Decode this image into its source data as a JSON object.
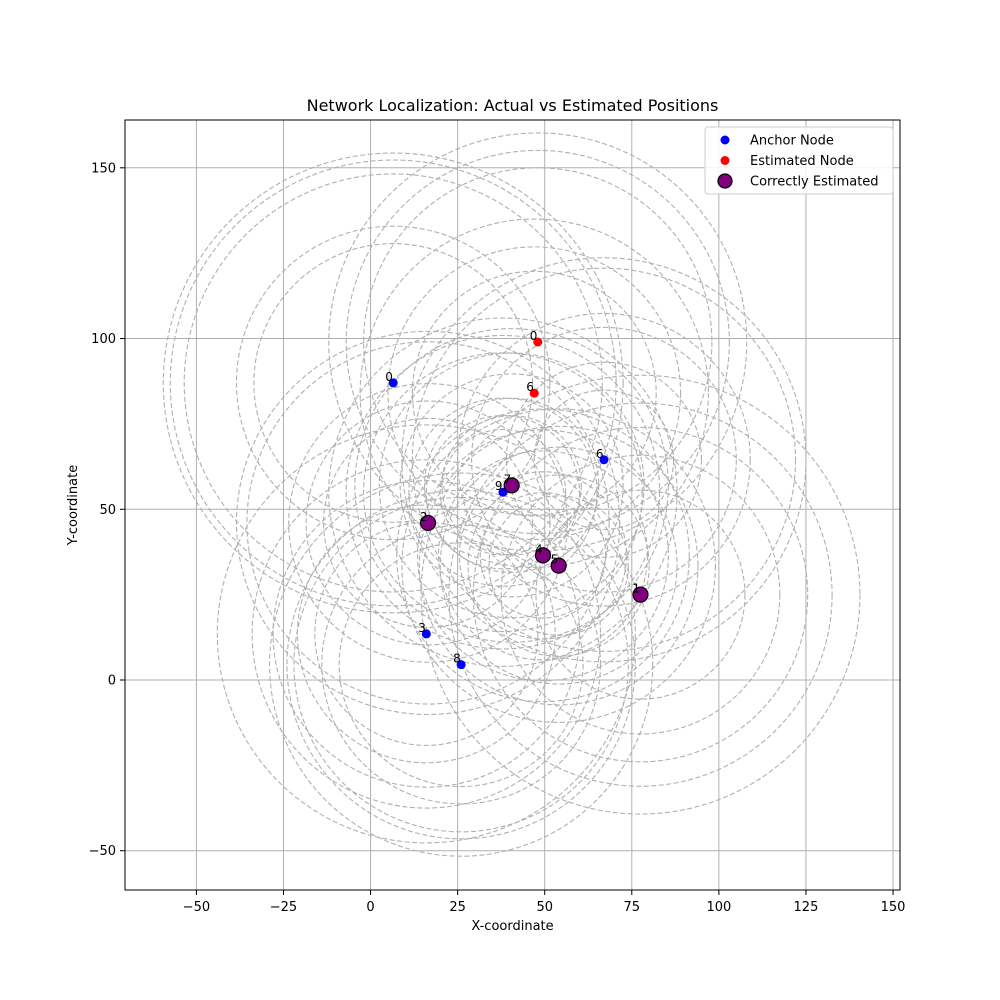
{
  "chart_data": {
    "type": "scatter",
    "title": "Network Localization: Actual vs Estimated Positions",
    "xlabel": "X-coordinate",
    "ylabel": "Y-coordinate",
    "xlim": [
      -70.5,
      152
    ],
    "ylim": [
      -61.5,
      164
    ],
    "xticks": [
      -50,
      -25,
      0,
      25,
      50,
      75,
      100,
      125,
      150
    ],
    "yticks": [
      -50,
      0,
      50,
      100,
      150
    ],
    "grid": true,
    "legend_position": "top-right",
    "legend": [
      {
        "label": "Anchor Node",
        "color": "#0000ff",
        "marker": "dot"
      },
      {
        "label": "Estimated Node",
        "color": "#ff0000",
        "marker": "dot"
      },
      {
        "label": "Correctly Estimated",
        "color": "#800080",
        "marker": "big-dot"
      }
    ],
    "anchor_nodes": [
      {
        "label": "0",
        "x": 6.5,
        "y": 87
      },
      {
        "label": "6",
        "x": 67,
        "y": 64.5
      },
      {
        "label": "9",
        "x": 38,
        "y": 55
      },
      {
        "label": "3",
        "x": 16,
        "y": 13.5
      },
      {
        "label": "8",
        "x": 26,
        "y": 4.5
      }
    ],
    "estimated_nodes": [
      {
        "label": "0",
        "x": 48,
        "y": 99
      },
      {
        "label": "6",
        "x": 47,
        "y": 84
      }
    ],
    "correctly_estimated_nodes": [
      {
        "label": "7",
        "x": 40.5,
        "y": 57
      },
      {
        "label": "2",
        "x": 16.5,
        "y": 46
      },
      {
        "label": "4",
        "x": 49.5,
        "y": 36.5
      },
      {
        "label": "5",
        "x": 54,
        "y": 33.5
      },
      {
        "label": "1",
        "x": 77.5,
        "y": 25
      }
    ],
    "range_circles": [
      {
        "cx": 6.5,
        "cy": 87,
        "r": 60
      },
      {
        "cx": 6.5,
        "cy": 87,
        "r": 64
      },
      {
        "cx": 6.5,
        "cy": 87,
        "r": 66
      },
      {
        "cx": 6.5,
        "cy": 87,
        "r": 45
      },
      {
        "cx": 6.5,
        "cy": 87,
        "r": 40
      },
      {
        "cx": 67,
        "cy": 64.5,
        "r": 55
      },
      {
        "cx": 67,
        "cy": 64.5,
        "r": 58
      },
      {
        "cx": 67,
        "cy": 64.5,
        "r": 42
      },
      {
        "cx": 67,
        "cy": 64.5,
        "r": 38
      },
      {
        "cx": 67,
        "cy": 64.5,
        "r": 28
      },
      {
        "cx": 67,
        "cy": 64.5,
        "r": 20
      },
      {
        "cx": 38,
        "cy": 55,
        "r": 50
      },
      {
        "cx": 38,
        "cy": 55,
        "r": 45
      },
      {
        "cx": 38,
        "cy": 55,
        "r": 40
      },
      {
        "cx": 38,
        "cy": 55,
        "r": 27
      },
      {
        "cx": 38,
        "cy": 55,
        "r": 22
      },
      {
        "cx": 38,
        "cy": 55,
        "r": 18
      },
      {
        "cx": 16,
        "cy": 13.5,
        "r": 60
      },
      {
        "cx": 16,
        "cy": 13.5,
        "r": 50
      },
      {
        "cx": 16,
        "cy": 13.5,
        "r": 44
      },
      {
        "cx": 16,
        "cy": 13.5,
        "r": 37
      },
      {
        "cx": 16,
        "cy": 13.5,
        "r": 32
      },
      {
        "cx": 26,
        "cy": 4.5,
        "r": 55
      },
      {
        "cx": 26,
        "cy": 4.5,
        "r": 50
      },
      {
        "cx": 26,
        "cy": 4.5,
        "r": 48
      },
      {
        "cx": 26,
        "cy": 4.5,
        "r": 40
      },
      {
        "cx": 26,
        "cy": 4.5,
        "r": 35
      },
      {
        "cx": 48,
        "cy": 99,
        "r": 60
      },
      {
        "cx": 48,
        "cy": 99,
        "r": 55
      },
      {
        "cx": 48,
        "cy": 99,
        "r": 50
      },
      {
        "cx": 47,
        "cy": 84,
        "r": 50
      },
      {
        "cx": 47,
        "cy": 84,
        "r": 42
      },
      {
        "cx": 47,
        "cy": 84,
        "r": 35
      },
      {
        "cx": 16.5,
        "cy": 46,
        "r": 55
      },
      {
        "cx": 16.5,
        "cy": 46,
        "r": 52
      },
      {
        "cx": 16.5,
        "cy": 46,
        "r": 40
      },
      {
        "cx": 16.5,
        "cy": 46,
        "r": 35
      },
      {
        "cx": 16.5,
        "cy": 46,
        "r": 30
      },
      {
        "cx": 77.5,
        "cy": 25,
        "r": 63
      },
      {
        "cx": 77.5,
        "cy": 25,
        "r": 55
      },
      {
        "cx": 77.5,
        "cy": 25,
        "r": 48
      },
      {
        "cx": 77.5,
        "cy": 25,
        "r": 40
      },
      {
        "cx": 77.5,
        "cy": 25,
        "r": 30
      },
      {
        "cx": 49.5,
        "cy": 36.5,
        "r": 42
      },
      {
        "cx": 49.5,
        "cy": 36.5,
        "r": 36
      },
      {
        "cx": 49.5,
        "cy": 36.5,
        "r": 30
      },
      {
        "cx": 49.5,
        "cy": 36.5,
        "r": 24
      },
      {
        "cx": 49.5,
        "cy": 36.5,
        "r": 18
      },
      {
        "cx": 54,
        "cy": 33.5,
        "r": 45
      },
      {
        "cx": 54,
        "cy": 33.5,
        "r": 40
      },
      {
        "cx": 54,
        "cy": 33.5,
        "r": 34
      },
      {
        "cx": 54,
        "cy": 33.5,
        "r": 26
      },
      {
        "cx": 54,
        "cy": 33.5,
        "r": 20
      },
      {
        "cx": 40.5,
        "cy": 57,
        "r": 45
      },
      {
        "cx": 40.5,
        "cy": 57,
        "r": 38
      },
      {
        "cx": 40.5,
        "cy": 57,
        "r": 32
      },
      {
        "cx": 40.5,
        "cy": 57,
        "r": 25
      },
      {
        "cx": 40.5,
        "cy": 57,
        "r": 20
      }
    ],
    "colors": {
      "anchor": "#0000ff",
      "estimated": "#ff0000",
      "correct_fill": "#800080",
      "correct_edge": "#000000",
      "circle": "#b0b0b0",
      "grid": "#b0b0b0"
    }
  }
}
